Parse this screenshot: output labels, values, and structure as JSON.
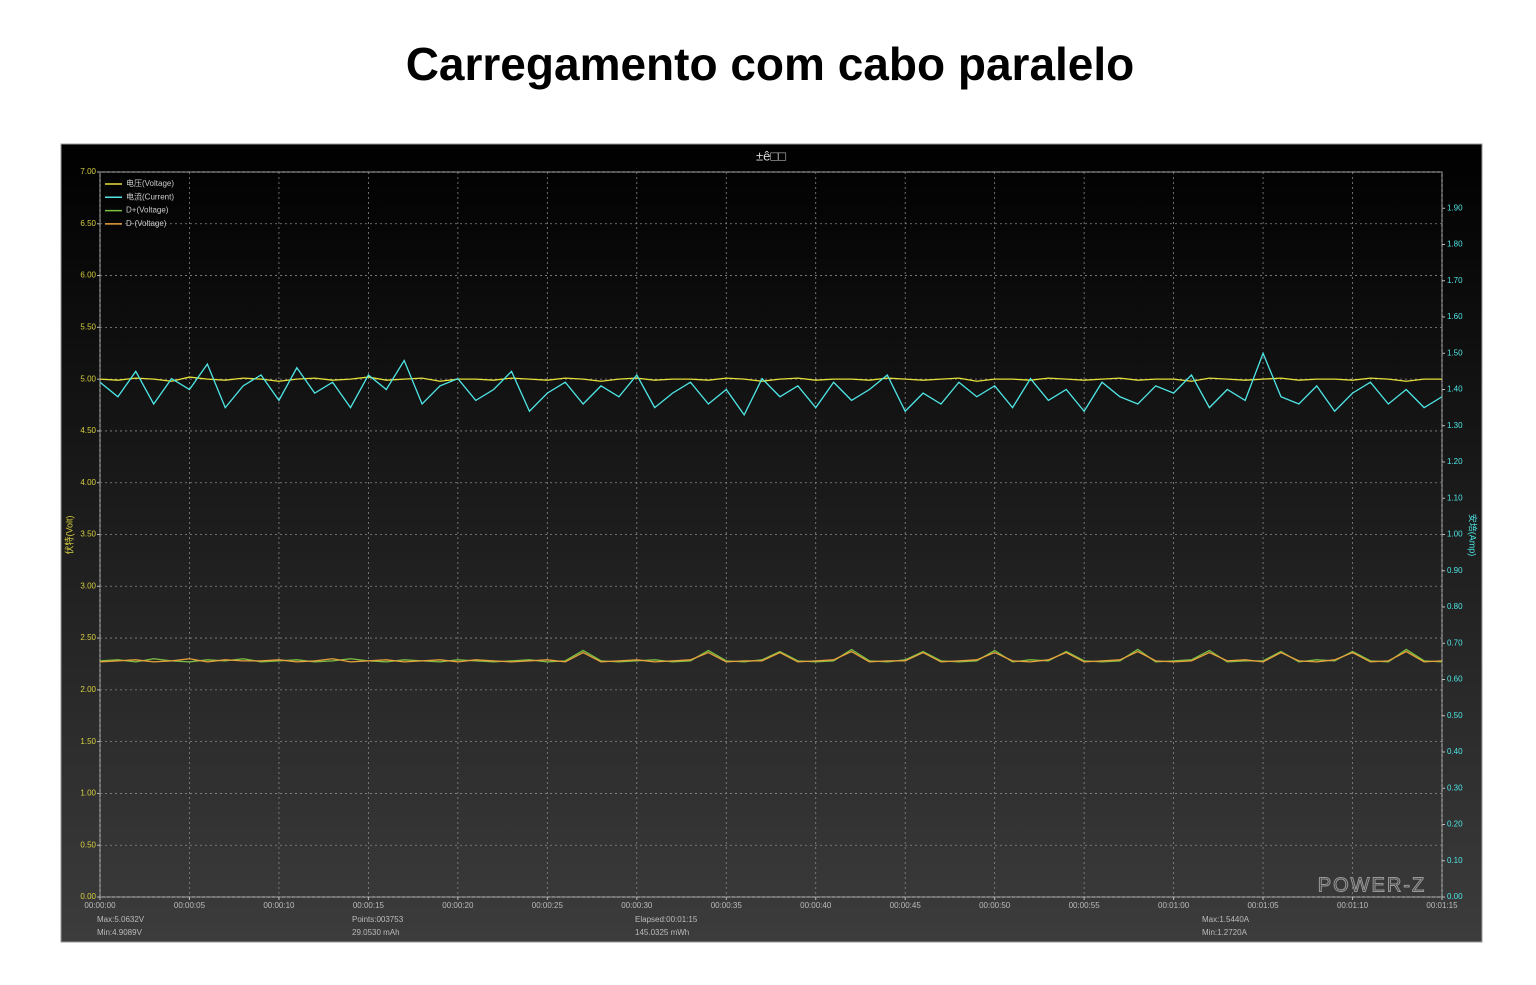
{
  "chart_data": {
    "type": "line",
    "title": "Carregamento com cabo paralelo",
    "subtitle": "±ê□□",
    "ylabel": "伏特(Volt)",
    "y2label": "安培(Amp)",
    "watermark": "POWER-Z",
    "grid": true,
    "legend": "top-left",
    "stats": [
      "Max:5.0632V",
      "Min:4.9089V",
      "Points:003753",
      "29.0530 mAh",
      "Elapsed:00:01:15",
      "145.0325 mWh",
      "Max:1.5440A",
      "Min:1.2720A"
    ],
    "x": [
      0,
      1,
      2,
      3,
      4,
      5,
      6,
      7,
      8,
      9,
      10,
      11,
      12,
      13,
      14,
      15,
      16,
      17,
      18,
      19,
      20,
      21,
      22,
      23,
      24,
      25,
      26,
      27,
      28,
      29,
      30,
      31,
      32,
      33,
      34,
      35,
      36,
      37,
      38,
      39,
      40,
      41,
      42,
      43,
      44,
      45,
      46,
      47,
      48,
      49,
      50,
      51,
      52,
      53,
      54,
      55,
      56,
      57,
      58,
      59,
      60,
      61,
      62,
      63,
      64,
      65,
      66,
      67,
      68,
      69,
      70,
      71,
      72,
      73,
      74,
      75
    ],
    "xlim": [
      0,
      75
    ],
    "xticks": [
      {
        "value": 0,
        "label": "00:00:00"
      },
      {
        "value": 5,
        "label": "00:00:05"
      },
      {
        "value": 10,
        "label": "00:00:10"
      },
      {
        "value": 15,
        "label": "00:00:15"
      },
      {
        "value": 20,
        "label": "00:00:20"
      },
      {
        "value": 25,
        "label": "00:00:25"
      },
      {
        "value": 30,
        "label": "00:00:30"
      },
      {
        "value": 35,
        "label": "00:00:35"
      },
      {
        "value": 40,
        "label": "00:00:40"
      },
      {
        "value": 45,
        "label": "00:00:45"
      },
      {
        "value": 50,
        "label": "00:00:50"
      },
      {
        "value": 55,
        "label": "00:00:55"
      },
      {
        "value": 60,
        "label": "00:01:00"
      },
      {
        "value": 65,
        "label": "00:01:05"
      },
      {
        "value": 70,
        "label": "00:01:10"
      },
      {
        "value": 75,
        "label": "00:01:15"
      }
    ],
    "ylim": [
      0,
      7
    ],
    "yticks": [
      {
        "value": 0,
        "label": "0.00"
      },
      {
        "value": 0.5,
        "label": "0.50"
      },
      {
        "value": 1,
        "label": "1.00"
      },
      {
        "value": 1.5,
        "label": "1.50"
      },
      {
        "value": 2,
        "label": "2.00"
      },
      {
        "value": 2.5,
        "label": "2.50"
      },
      {
        "value": 3,
        "label": "3.00"
      },
      {
        "value": 3.5,
        "label": "3.50"
      },
      {
        "value": 4,
        "label": "4.00"
      },
      {
        "value": 4.5,
        "label": "4.50"
      },
      {
        "value": 5,
        "label": "5.00"
      },
      {
        "value": 5.5,
        "label": "5.50"
      },
      {
        "value": 6,
        "label": "6.00"
      },
      {
        "value": 6.5,
        "label": "6.50"
      },
      {
        "value": 7,
        "label": "7.00"
      }
    ],
    "y2lim": [
      0,
      2
    ],
    "y2ticks": [
      {
        "value": 0,
        "label": "0.00"
      },
      {
        "value": 0.1,
        "label": "0.10"
      },
      {
        "value": 0.2,
        "label": "0.20"
      },
      {
        "value": 0.3,
        "label": "0.30"
      },
      {
        "value": 0.4,
        "label": "0.40"
      },
      {
        "value": 0.5,
        "label": "0.50"
      },
      {
        "value": 0.6,
        "label": "0.60"
      },
      {
        "value": 0.7,
        "label": "0.70"
      },
      {
        "value": 0.8,
        "label": "0.80"
      },
      {
        "value": 0.9,
        "label": "0.90"
      },
      {
        "value": 1,
        "label": "1.00"
      },
      {
        "value": 1.1,
        "label": "1.10"
      },
      {
        "value": 1.2,
        "label": "1.20"
      },
      {
        "value": 1.3,
        "label": "1.30"
      },
      {
        "value": 1.4,
        "label": "1.40"
      },
      {
        "value": 1.5,
        "label": "1.50"
      },
      {
        "value": 1.6,
        "label": "1.60"
      },
      {
        "value": 1.7,
        "label": "1.70"
      },
      {
        "value": 1.8,
        "label": "1.80"
      },
      {
        "value": 1.9,
        "label": "1.90"
      }
    ],
    "series": [
      {
        "name": "电压(Voltage)",
        "color": "#e6e03a",
        "values": [
          5.0,
          4.99,
          5.01,
          5.0,
          4.98,
          5.02,
          5.0,
          4.99,
          5.01,
          5.0,
          4.98,
          5.0,
          5.01,
          4.99,
          5.0,
          5.02,
          4.99,
          5.0,
          5.01,
          4.98,
          5.0,
          5.0,
          4.99,
          5.01,
          5.0,
          4.99,
          5.01,
          5.0,
          4.98,
          5.0,
          5.01,
          4.99,
          5.0,
          5.0,
          4.99,
          5.01,
          5.0,
          4.98,
          5.0,
          5.01,
          4.99,
          5.0,
          5.0,
          4.99,
          5.01,
          5.0,
          4.99,
          5.0,
          5.01,
          4.98,
          5.0,
          5.0,
          4.99,
          5.01,
          5.0,
          4.99,
          5.0,
          5.01,
          4.99,
          5.0,
          5.0,
          4.98,
          5.01,
          5.0,
          4.99,
          5.0,
          5.01,
          4.99,
          5.0,
          5.0,
          4.99,
          5.01,
          5.0,
          4.98,
          5.0,
          5.0
        ]
      },
      {
        "name": "电流(Current)",
        "color": "#4fe6e6",
        "axis": "y2",
        "values": [
          1.42,
          1.38,
          1.45,
          1.36,
          1.43,
          1.4,
          1.47,
          1.35,
          1.41,
          1.44,
          1.37,
          1.46,
          1.39,
          1.42,
          1.35,
          1.44,
          1.4,
          1.48,
          1.36,
          1.41,
          1.43,
          1.37,
          1.4,
          1.45,
          1.34,
          1.39,
          1.42,
          1.36,
          1.41,
          1.38,
          1.44,
          1.35,
          1.39,
          1.42,
          1.36,
          1.4,
          1.33,
          1.43,
          1.38,
          1.41,
          1.35,
          1.42,
          1.37,
          1.4,
          1.44,
          1.34,
          1.39,
          1.36,
          1.42,
          1.38,
          1.41,
          1.35,
          1.43,
          1.37,
          1.4,
          1.34,
          1.42,
          1.38,
          1.36,
          1.41,
          1.39,
          1.44,
          1.35,
          1.4,
          1.37,
          1.5,
          1.38,
          1.36,
          1.41,
          1.34,
          1.39,
          1.42,
          1.36,
          1.4,
          1.35,
          1.38
        ]
      },
      {
        "name": "D+(Voltage)",
        "color": "#7cc142",
        "values": [
          2.28,
          2.29,
          2.27,
          2.3,
          2.28,
          2.27,
          2.29,
          2.28,
          2.3,
          2.27,
          2.28,
          2.29,
          2.27,
          2.28,
          2.3,
          2.28,
          2.27,
          2.29,
          2.28,
          2.27,
          2.29,
          2.28,
          2.27,
          2.28,
          2.29,
          2.27,
          2.28,
          2.38,
          2.28,
          2.27,
          2.28,
          2.29,
          2.27,
          2.28,
          2.38,
          2.28,
          2.27,
          2.29,
          2.37,
          2.28,
          2.27,
          2.28,
          2.39,
          2.28,
          2.27,
          2.29,
          2.37,
          2.28,
          2.27,
          2.28,
          2.38,
          2.27,
          2.29,
          2.28,
          2.37,
          2.28,
          2.27,
          2.28,
          2.39,
          2.27,
          2.28,
          2.29,
          2.38,
          2.27,
          2.28,
          2.28,
          2.37,
          2.27,
          2.29,
          2.28,
          2.37,
          2.28,
          2.27,
          2.39,
          2.28,
          2.27
        ]
      },
      {
        "name": "D-(Voltage)",
        "color": "#e9a03c",
        "values": [
          2.27,
          2.28,
          2.29,
          2.27,
          2.28,
          2.3,
          2.27,
          2.29,
          2.28,
          2.28,
          2.29,
          2.27,
          2.28,
          2.3,
          2.27,
          2.28,
          2.29,
          2.27,
          2.28,
          2.29,
          2.27,
          2.29,
          2.28,
          2.27,
          2.28,
          2.29,
          2.27,
          2.36,
          2.27,
          2.28,
          2.29,
          2.27,
          2.28,
          2.29,
          2.36,
          2.27,
          2.28,
          2.28,
          2.36,
          2.27,
          2.28,
          2.29,
          2.37,
          2.27,
          2.28,
          2.28,
          2.36,
          2.27,
          2.28,
          2.29,
          2.36,
          2.28,
          2.27,
          2.29,
          2.36,
          2.27,
          2.28,
          2.29,
          2.37,
          2.28,
          2.27,
          2.28,
          2.36,
          2.28,
          2.29,
          2.27,
          2.36,
          2.28,
          2.27,
          2.29,
          2.36,
          2.27,
          2.28,
          2.37,
          2.27,
          2.28
        ]
      }
    ]
  }
}
